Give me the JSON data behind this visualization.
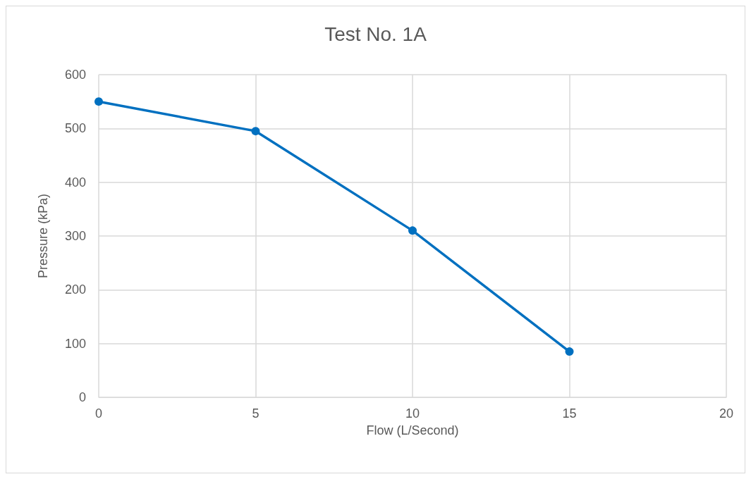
{
  "chart_data": {
    "type": "line",
    "title": "Test No. 1A",
    "xlabel": "Flow (L/Second)",
    "ylabel": "Pressure (kPa)",
    "x": [
      0,
      5,
      10,
      15
    ],
    "series": [
      {
        "color": "#0070c0",
        "values": [
          550,
          495,
          310,
          85
        ]
      }
    ],
    "xlim": [
      0,
      20
    ],
    "xticks": [
      0,
      5,
      10,
      15,
      20
    ],
    "ylim": [
      0,
      600
    ],
    "yticks": [
      0,
      100,
      200,
      300,
      400,
      500,
      600
    ],
    "grid": true,
    "marker": "circle",
    "line_style": "solid"
  }
}
